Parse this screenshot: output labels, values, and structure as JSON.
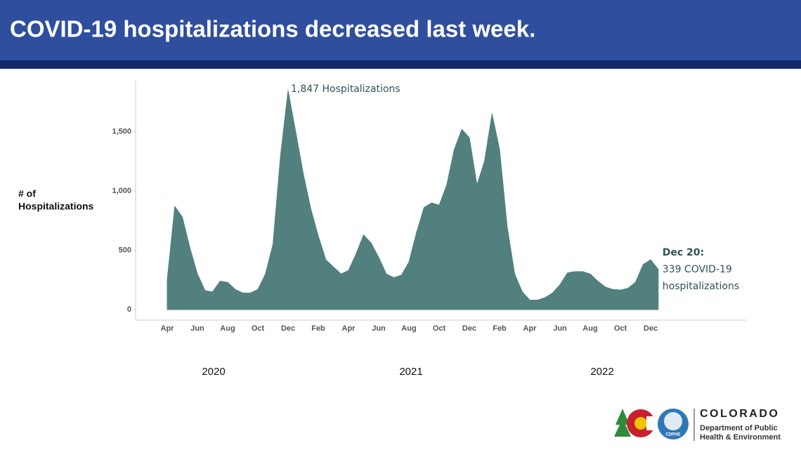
{
  "chart_data": {
    "type": "area",
    "title": "COVID-19 hospitalizations decreased last week.",
    "y_label": [
      "# of",
      "Hospitalizations"
    ],
    "categories": [
      "Apr",
      null,
      null,
      null,
      "Jun",
      null,
      null,
      null,
      "Aug",
      null,
      null,
      null,
      "Oct",
      null,
      null,
      null,
      "Dec",
      null,
      null,
      null,
      "Feb",
      null,
      null,
      null,
      "Apr",
      null,
      null,
      null,
      "Jun",
      null,
      null,
      null,
      "Aug",
      null,
      null,
      null,
      "Oct",
      null,
      null,
      null,
      "Dec",
      null,
      null,
      null,
      "Feb",
      null,
      null,
      null,
      "Apr",
      null,
      null,
      null,
      "Jun",
      null,
      null,
      null,
      "Aug",
      null,
      null,
      null,
      "Oct",
      null,
      null,
      null,
      "Dec",
      null
    ],
    "years": [
      "2020",
      "2021",
      "2022"
    ],
    "values": [
      250,
      870,
      780,
      520,
      300,
      160,
      150,
      240,
      230,
      170,
      140,
      140,
      170,
      300,
      550,
      1300,
      1847,
      1500,
      1150,
      850,
      620,
      420,
      360,
      300,
      330,
      470,
      630,
      560,
      440,
      300,
      270,
      290,
      400,
      650,
      860,
      900,
      880,
      1050,
      1350,
      1520,
      1450,
      1050,
      1250,
      1650,
      1350,
      700,
      300,
      150,
      80,
      80,
      100,
      140,
      210,
      310,
      320,
      320,
      300,
      240,
      190,
      170,
      165,
      180,
      230,
      380,
      420,
      339
    ],
    "color": "#52807f",
    "ylim": [
      0,
      1930
    ],
    "yticks": [
      0,
      500,
      {
        "value": 1000,
        "label": "1,000"
      },
      {
        "value": 1500,
        "label": "1,500"
      }
    ],
    "annotations": {
      "peak": "1,847 Hospitalizations",
      "latest": [
        "Dec 20:",
        "339 COVID-19",
        "hospitalizations"
      ]
    }
  },
  "logo": {
    "name": "COLORADO",
    "line1": "Department of Public",
    "line2": "Health & Environment",
    "badge": "CDPHE"
  }
}
